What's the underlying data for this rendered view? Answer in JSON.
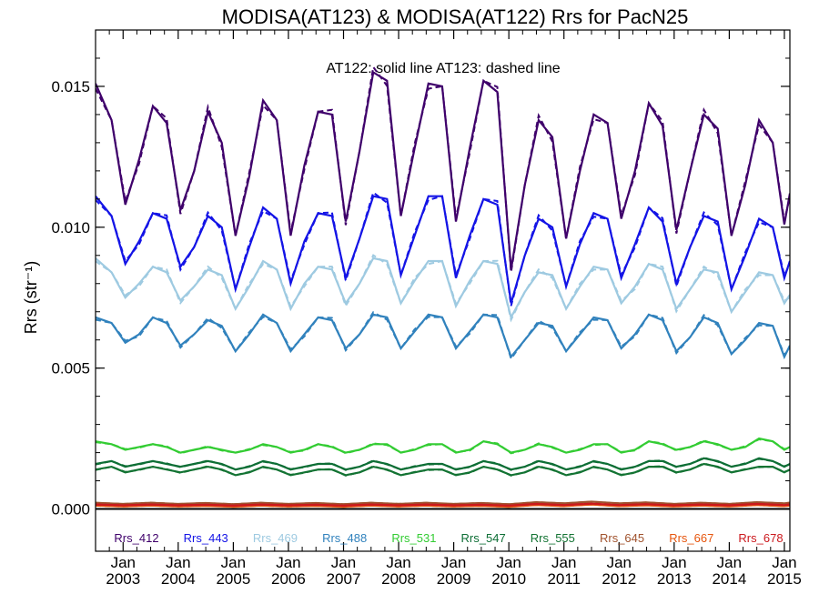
{
  "chart_data": {
    "type": "line",
    "title": "MODISA(AT123) & MODISA(AT122)  Rrs for PacN25",
    "annotation": "AT122: solid line   AT123: dashed line",
    "ylabel": "Rrs (str⁻¹)",
    "xlabel": "",
    "xlim": [
      2002.5,
      2015.1
    ],
    "ylim": [
      -0.0015,
      0.017
    ],
    "y_ticks": [
      "0.000",
      "0.005",
      "0.010",
      "0.015"
    ],
    "y_tick_values": [
      0.0,
      0.005,
      0.01,
      0.015
    ],
    "x_ticks": [
      {
        "month": "Jan",
        "year": "2003",
        "value": 2003
      },
      {
        "month": "Jan",
        "year": "2004",
        "value": 2004
      },
      {
        "month": "Jan",
        "year": "2005",
        "value": 2005
      },
      {
        "month": "Jan",
        "year": "2006",
        "value": 2006
      },
      {
        "month": "Jan",
        "year": "2007",
        "value": 2007
      },
      {
        "month": "Jan",
        "year": "2008",
        "value": 2008
      },
      {
        "month": "Jan",
        "year": "2009",
        "value": 2009
      },
      {
        "month": "Jan",
        "year": "2010",
        "value": 2010
      },
      {
        "month": "Jan",
        "year": "2011",
        "value": 2011
      },
      {
        "month": "Jan",
        "year": "2012",
        "value": 2012
      },
      {
        "month": "Jan",
        "year": "2013",
        "value": 2013
      },
      {
        "month": "Jan",
        "year": "2014",
        "value": 2014
      },
      {
        "month": "Jan",
        "year": "2015",
        "value": 2015
      }
    ],
    "grid": false,
    "legend_position": "bottom-inside",
    "line_styles": {
      "AT122": "solid",
      "AT123": "dashed"
    },
    "zero_line": 0.0,
    "series": [
      {
        "name": "Rrs_412",
        "color": "#3f006b",
        "x": [
          2002.5,
          2002.79,
          2003.04,
          2003.29,
          2003.54,
          2003.79,
          2004.04,
          2004.29,
          2004.54,
          2004.79,
          2005.04,
          2005.29,
          2005.54,
          2005.79,
          2006.04,
          2006.29,
          2006.54,
          2006.79,
          2007.04,
          2007.29,
          2007.54,
          2007.79,
          2008.04,
          2008.29,
          2008.54,
          2008.79,
          2009.04,
          2009.29,
          2009.54,
          2009.79,
          2010.04,
          2010.29,
          2010.54,
          2010.79,
          2011.04,
          2011.29,
          2011.54,
          2011.79,
          2012.04,
          2012.29,
          2012.54,
          2012.79,
          2013.04,
          2013.29,
          2013.54,
          2013.79,
          2014.04,
          2014.29,
          2014.54,
          2014.79,
          2015.0,
          2015.1
        ],
        "y": [
          0.0151,
          0.0138,
          0.0108,
          0.0124,
          0.0143,
          0.0137,
          0.0106,
          0.012,
          0.0141,
          0.013,
          0.0097,
          0.0118,
          0.0145,
          0.0138,
          0.0097,
          0.0122,
          0.0141,
          0.014,
          0.0102,
          0.0127,
          0.0155,
          0.0152,
          0.0104,
          0.0128,
          0.0151,
          0.015,
          0.0102,
          0.0128,
          0.0152,
          0.0148,
          0.0085,
          0.0115,
          0.0138,
          0.0132,
          0.0096,
          0.012,
          0.014,
          0.0137,
          0.0103,
          0.012,
          0.0144,
          0.0136,
          0.0099,
          0.012,
          0.014,
          0.0135,
          0.0097,
          0.0115,
          0.0138,
          0.013,
          0.0101,
          0.0112
        ]
      },
      {
        "name": "Rrs_443",
        "color": "#1414e6",
        "x": [
          2002.5,
          2002.79,
          2003.04,
          2003.29,
          2003.54,
          2003.79,
          2004.04,
          2004.29,
          2004.54,
          2004.79,
          2005.04,
          2005.29,
          2005.54,
          2005.79,
          2006.04,
          2006.29,
          2006.54,
          2006.79,
          2007.04,
          2007.29,
          2007.54,
          2007.79,
          2008.04,
          2008.29,
          2008.54,
          2008.79,
          2009.04,
          2009.29,
          2009.54,
          2009.79,
          2010.04,
          2010.29,
          2010.54,
          2010.79,
          2011.04,
          2011.29,
          2011.54,
          2011.79,
          2012.04,
          2012.29,
          2012.54,
          2012.79,
          2013.04,
          2013.29,
          2013.54,
          2013.79,
          2014.04,
          2014.29,
          2014.54,
          2014.79,
          2015.0,
          2015.1
        ],
        "y": [
          0.0111,
          0.0104,
          0.0087,
          0.0095,
          0.0105,
          0.0103,
          0.0086,
          0.0093,
          0.0104,
          0.01,
          0.0078,
          0.0093,
          0.0107,
          0.0103,
          0.008,
          0.0095,
          0.0105,
          0.0104,
          0.0082,
          0.0096,
          0.0111,
          0.011,
          0.0083,
          0.0097,
          0.0111,
          0.0111,
          0.0082,
          0.0097,
          0.011,
          0.0108,
          0.0073,
          0.009,
          0.0103,
          0.01,
          0.0079,
          0.0094,
          0.0105,
          0.0103,
          0.0082,
          0.0094,
          0.0107,
          0.0102,
          0.008,
          0.0093,
          0.0104,
          0.0102,
          0.0078,
          0.009,
          0.0103,
          0.01,
          0.0082,
          0.0088
        ]
      },
      {
        "name": "Rrs_469",
        "color": "#9ecae1",
        "x": [
          2002.5,
          2002.79,
          2003.04,
          2003.29,
          2003.54,
          2003.79,
          2004.04,
          2004.29,
          2004.54,
          2004.79,
          2005.04,
          2005.29,
          2005.54,
          2005.79,
          2006.04,
          2006.29,
          2006.54,
          2006.79,
          2007.04,
          2007.29,
          2007.54,
          2007.79,
          2008.04,
          2008.29,
          2008.54,
          2008.79,
          2009.04,
          2009.29,
          2009.54,
          2009.79,
          2010.04,
          2010.29,
          2010.54,
          2010.79,
          2011.04,
          2011.29,
          2011.54,
          2011.79,
          2012.04,
          2012.29,
          2012.54,
          2012.79,
          2013.04,
          2013.29,
          2013.54,
          2013.79,
          2014.04,
          2014.29,
          2014.54,
          2014.79,
          2015.0,
          2015.1
        ],
        "y": [
          0.0089,
          0.0084,
          0.0075,
          0.008,
          0.0086,
          0.0084,
          0.0074,
          0.0079,
          0.0085,
          0.0083,
          0.0071,
          0.0079,
          0.0088,
          0.0085,
          0.0071,
          0.008,
          0.0086,
          0.0085,
          0.0073,
          0.008,
          0.0089,
          0.0088,
          0.0073,
          0.0081,
          0.0088,
          0.0088,
          0.0072,
          0.0081,
          0.0088,
          0.0087,
          0.0068,
          0.0077,
          0.0084,
          0.0083,
          0.0071,
          0.0079,
          0.0086,
          0.0085,
          0.0073,
          0.0079,
          0.0087,
          0.0085,
          0.0071,
          0.0078,
          0.0085,
          0.0084,
          0.007,
          0.0077,
          0.0084,
          0.0083,
          0.0073,
          0.0076
        ]
      },
      {
        "name": "Rrs_488",
        "color": "#3182bd",
        "x": [
          2002.5,
          2002.79,
          2003.04,
          2003.29,
          2003.54,
          2003.79,
          2004.04,
          2004.29,
          2004.54,
          2004.79,
          2005.04,
          2005.29,
          2005.54,
          2005.79,
          2006.04,
          2006.29,
          2006.54,
          2006.79,
          2007.04,
          2007.29,
          2007.54,
          2007.79,
          2008.04,
          2008.29,
          2008.54,
          2008.79,
          2009.04,
          2009.29,
          2009.54,
          2009.79,
          2010.04,
          2010.29,
          2010.54,
          2010.79,
          2011.04,
          2011.29,
          2011.54,
          2011.79,
          2012.04,
          2012.29,
          2012.54,
          2012.79,
          2013.04,
          2013.29,
          2013.54,
          2013.79,
          2014.04,
          2014.29,
          2014.54,
          2014.79,
          2015.0,
          2015.1
        ],
        "y": [
          0.0068,
          0.0066,
          0.0059,
          0.0062,
          0.0068,
          0.0066,
          0.0058,
          0.0062,
          0.0067,
          0.0065,
          0.0056,
          0.0062,
          0.0069,
          0.0066,
          0.0056,
          0.0062,
          0.0068,
          0.0067,
          0.0057,
          0.0062,
          0.0069,
          0.0068,
          0.0057,
          0.0063,
          0.0069,
          0.0068,
          0.0057,
          0.0063,
          0.0069,
          0.0068,
          0.0054,
          0.006,
          0.0066,
          0.0065,
          0.0056,
          0.0062,
          0.0068,
          0.0067,
          0.0057,
          0.0062,
          0.0069,
          0.0067,
          0.0056,
          0.0061,
          0.0068,
          0.0066,
          0.0055,
          0.006,
          0.0066,
          0.0065,
          0.0054,
          0.0058
        ]
      },
      {
        "name": "Rrs_531",
        "color": "#33cc33",
        "x": [
          2002.5,
          2002.79,
          2003.04,
          2003.29,
          2003.54,
          2003.79,
          2004.04,
          2004.29,
          2004.54,
          2004.79,
          2005.04,
          2005.29,
          2005.54,
          2005.79,
          2006.04,
          2006.29,
          2006.54,
          2006.79,
          2007.04,
          2007.29,
          2007.54,
          2007.79,
          2008.04,
          2008.29,
          2008.54,
          2008.79,
          2009.04,
          2009.29,
          2009.54,
          2009.79,
          2010.04,
          2010.29,
          2010.54,
          2010.79,
          2011.04,
          2011.29,
          2011.54,
          2011.79,
          2012.04,
          2012.29,
          2012.54,
          2012.79,
          2013.04,
          2013.29,
          2013.54,
          2013.79,
          2014.04,
          2014.29,
          2014.54,
          2014.79,
          2015.0,
          2015.1
        ],
        "y": [
          0.0024,
          0.0023,
          0.0021,
          0.0022,
          0.0023,
          0.0022,
          0.002,
          0.0021,
          0.0022,
          0.0021,
          0.002,
          0.0021,
          0.0023,
          0.0022,
          0.002,
          0.0021,
          0.0023,
          0.0022,
          0.002,
          0.0021,
          0.0023,
          0.0023,
          0.002,
          0.0021,
          0.0023,
          0.0023,
          0.002,
          0.0021,
          0.0024,
          0.0023,
          0.002,
          0.0021,
          0.0023,
          0.0022,
          0.002,
          0.0021,
          0.0023,
          0.0023,
          0.002,
          0.0021,
          0.0024,
          0.0023,
          0.0021,
          0.0022,
          0.0024,
          0.0023,
          0.0021,
          0.0022,
          0.0025,
          0.0024,
          0.0021,
          0.0022
        ]
      },
      {
        "name": "Rrs_547",
        "color": "#0d6e35",
        "x": [
          2002.5,
          2002.79,
          2003.04,
          2003.29,
          2003.54,
          2003.79,
          2004.04,
          2004.29,
          2004.54,
          2004.79,
          2005.04,
          2005.29,
          2005.54,
          2005.79,
          2006.04,
          2006.29,
          2006.54,
          2006.79,
          2007.04,
          2007.29,
          2007.54,
          2007.79,
          2008.04,
          2008.29,
          2008.54,
          2008.79,
          2009.04,
          2009.29,
          2009.54,
          2009.79,
          2010.04,
          2010.29,
          2010.54,
          2010.79,
          2011.04,
          2011.29,
          2011.54,
          2011.79,
          2012.04,
          2012.29,
          2012.54,
          2012.79,
          2013.04,
          2013.29,
          2013.54,
          2013.79,
          2014.04,
          2014.29,
          2014.54,
          2014.79,
          2015.0,
          2015.1
        ],
        "y": [
          0.0016,
          0.0017,
          0.0015,
          0.0016,
          0.0017,
          0.0016,
          0.0015,
          0.0016,
          0.0017,
          0.0016,
          0.0014,
          0.0015,
          0.0017,
          0.0016,
          0.0014,
          0.0015,
          0.0016,
          0.0016,
          0.0014,
          0.0015,
          0.0017,
          0.0016,
          0.0014,
          0.0015,
          0.0016,
          0.0016,
          0.0014,
          0.0015,
          0.0017,
          0.0016,
          0.0014,
          0.0015,
          0.0017,
          0.0016,
          0.0014,
          0.0015,
          0.0017,
          0.0016,
          0.0014,
          0.0015,
          0.0017,
          0.0017,
          0.0015,
          0.0016,
          0.0018,
          0.0017,
          0.0015,
          0.0016,
          0.0018,
          0.0017,
          0.0015,
          0.0016
        ]
      },
      {
        "name": "Rrs_555",
        "color": "#137333",
        "x": [
          2002.5,
          2002.79,
          2003.04,
          2003.29,
          2003.54,
          2003.79,
          2004.04,
          2004.29,
          2004.54,
          2004.79,
          2005.04,
          2005.29,
          2005.54,
          2005.79,
          2006.04,
          2006.29,
          2006.54,
          2006.79,
          2007.04,
          2007.29,
          2007.54,
          2007.79,
          2008.04,
          2008.29,
          2008.54,
          2008.79,
          2009.04,
          2009.29,
          2009.54,
          2009.79,
          2010.04,
          2010.29,
          2010.54,
          2010.79,
          2011.04,
          2011.29,
          2011.54,
          2011.79,
          2012.04,
          2012.29,
          2012.54,
          2012.79,
          2013.04,
          2013.29,
          2013.54,
          2013.79,
          2014.04,
          2014.29,
          2014.54,
          2014.79,
          2015.0,
          2015.1
        ],
        "y": [
          0.0014,
          0.0015,
          0.0013,
          0.0014,
          0.0015,
          0.0014,
          0.0013,
          0.0014,
          0.0015,
          0.0014,
          0.0012,
          0.0013,
          0.0015,
          0.0014,
          0.0012,
          0.0013,
          0.0014,
          0.0014,
          0.0012,
          0.0013,
          0.0015,
          0.0014,
          0.0012,
          0.0013,
          0.0014,
          0.0014,
          0.0012,
          0.0013,
          0.0015,
          0.0014,
          0.0012,
          0.0013,
          0.0015,
          0.0014,
          0.0012,
          0.0013,
          0.0015,
          0.0014,
          0.0012,
          0.0013,
          0.0015,
          0.0015,
          0.0013,
          0.0014,
          0.0016,
          0.0015,
          0.0013,
          0.0014,
          0.0015,
          0.0015,
          0.0013,
          0.0014
        ]
      },
      {
        "name": "Rrs_645",
        "color": "#a0522d",
        "x": [
          2002.5,
          2003.0,
          2003.5,
          2004.0,
          2004.5,
          2005.0,
          2005.5,
          2006.0,
          2006.5,
          2007.0,
          2007.5,
          2008.0,
          2008.5,
          2009.0,
          2009.5,
          2010.0,
          2010.5,
          2011.0,
          2011.5,
          2012.0,
          2012.5,
          2013.0,
          2013.5,
          2014.0,
          2014.5,
          2015.0,
          2015.1
        ],
        "y": [
          0.00022,
          0.00018,
          0.00022,
          0.00018,
          0.00021,
          0.00017,
          0.00022,
          0.00018,
          0.00021,
          0.00017,
          0.00022,
          0.00018,
          0.00022,
          0.00018,
          0.00021,
          0.00017,
          0.00024,
          0.0002,
          0.00026,
          0.0002,
          0.00023,
          0.00018,
          0.00022,
          0.00018,
          0.00024,
          0.0002,
          0.00022
        ]
      },
      {
        "name": "Rrs_667",
        "color": "#e6550d",
        "x": [
          2002.5,
          2003.0,
          2003.5,
          2004.0,
          2004.5,
          2005.0,
          2005.5,
          2006.0,
          2006.5,
          2007.0,
          2007.5,
          2008.0,
          2008.5,
          2009.0,
          2009.5,
          2010.0,
          2010.5,
          2011.0,
          2011.5,
          2012.0,
          2012.5,
          2013.0,
          2013.5,
          2014.0,
          2014.5,
          2015.0,
          2015.1
        ],
        "y": [
          0.00012,
          9e-05,
          0.00012,
          9e-05,
          0.00011,
          8e-05,
          0.00012,
          9e-05,
          0.00011,
          8e-05,
          0.00012,
          9e-05,
          0.00012,
          9e-05,
          0.00011,
          8e-05,
          0.00014,
          0.0001,
          0.00016,
          0.0001,
          0.00013,
          9e-05,
          0.00012,
          9e-05,
          0.00014,
          0.0001,
          0.00012
        ]
      },
      {
        "name": "Rrs_678",
        "color": "#cb181d",
        "x": [
          2002.5,
          2003.0,
          2003.5,
          2004.0,
          2004.5,
          2005.0,
          2005.5,
          2006.0,
          2006.5,
          2007.0,
          2007.5,
          2008.0,
          2008.5,
          2009.0,
          2009.5,
          2010.0,
          2010.5,
          2011.0,
          2011.5,
          2012.0,
          2012.5,
          2013.0,
          2013.5,
          2014.0,
          2014.5,
          2015.0,
          2015.1
        ],
        "y": [
          0.00016,
          0.00013,
          0.00016,
          0.00013,
          0.00015,
          0.00012,
          0.00016,
          0.00013,
          0.00015,
          0.00012,
          0.00016,
          0.00013,
          0.00016,
          0.00013,
          0.00015,
          0.00012,
          0.00018,
          0.00014,
          0.00019,
          0.00014,
          0.00017,
          0.00013,
          0.00016,
          0.00013,
          0.00018,
          0.00014,
          0.00016
        ]
      }
    ]
  }
}
